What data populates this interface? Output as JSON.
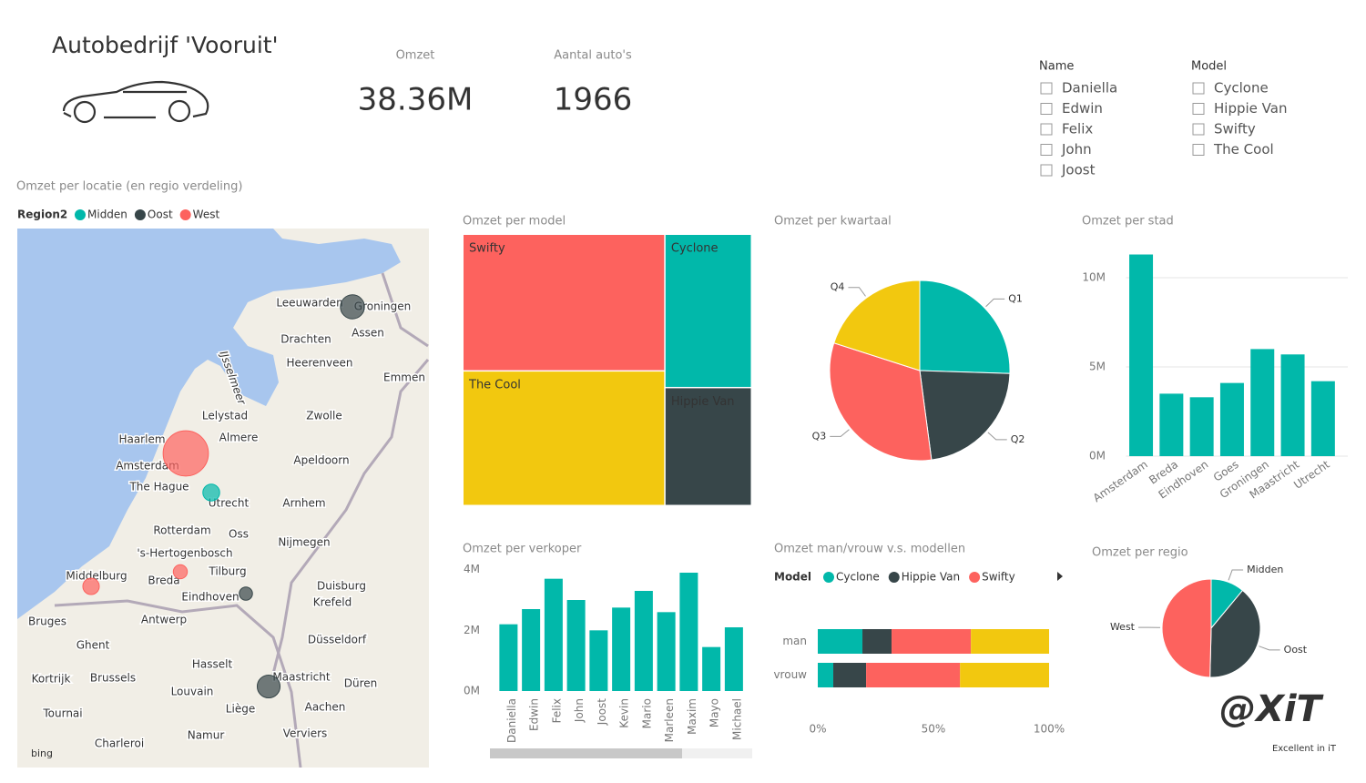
{
  "header": {
    "title": "Autobedrijf 'Vooruit'"
  },
  "cards": [
    {
      "label": "Omzet",
      "value": "38.36M"
    },
    {
      "label": "Aantal auto's",
      "value": "1966"
    }
  ],
  "slicers": [
    {
      "title": "Name",
      "items": [
        "Daniella",
        "Edwin",
        "Felix",
        "John",
        "Joost"
      ]
    },
    {
      "title": "Model",
      "items": [
        "Cyclone",
        "Hippie Van",
        "Swifty",
        "The Cool"
      ]
    }
  ],
  "chart_data": [
    {
      "type": "map",
      "title": "Omzet per locatie (en regio verdeling)",
      "legend_title": "Region2",
      "series": [
        {
          "name": "Midden",
          "color": "#01b8aa",
          "values": [
            4.2
          ]
        },
        {
          "name": "Oost",
          "color": "#374649",
          "values": [
            6.0,
            3.3,
            5.7
          ]
        },
        {
          "name": "West",
          "color": "#fd625e",
          "values": [
            11.3,
            3.5,
            4.1
          ]
        }
      ],
      "places": [
        "Leeuwarden",
        "Groningen",
        "Assen",
        "Drachten",
        "Heerenveen",
        "Emmen",
        "Lelystad",
        "Zwolle",
        "Haarlem",
        "Almere",
        "Amsterdam",
        "Apeldoorn",
        "The Hague",
        "Utrecht",
        "Arnhem",
        "Rotterdam",
        "Oss",
        "Nijmegen",
        "'s-Hertogenbosch",
        "Tilburg",
        "Middelburg",
        "Breda",
        "Eindhoven",
        "Duisburg",
        "Krefeld",
        "Antwerp",
        "Bruges",
        "Ghent",
        "Düsseldorf",
        "Hasselt",
        "Maastricht",
        "Kortrijk",
        "Brussels",
        "Louvain",
        "Düren",
        "Tournai",
        "Liège",
        "Aachen",
        "Namur",
        "Charleroi",
        "Verviers",
        "IJsselmeer"
      ],
      "attribution": "bing"
    },
    {
      "type": "treemap",
      "title": "Omzet per model",
      "categories": [
        "Swifty",
        "The Cool",
        "Cyclone",
        "Hippie Van"
      ],
      "values": [
        13.5,
        13.3,
        6.5,
        5.0
      ],
      "colors": [
        "#fd625e",
        "#f2c80f",
        "#01b8aa",
        "#374649"
      ]
    },
    {
      "type": "pie",
      "title": "Omzet per kwartaal",
      "categories": [
        "Q1",
        "Q2",
        "Q3",
        "Q4"
      ],
      "values": [
        9.8,
        8.6,
        12.3,
        7.7
      ],
      "colors": [
        "#01b8aa",
        "#374649",
        "#fd625e",
        "#f2c80f"
      ]
    },
    {
      "type": "bar",
      "title": "Omzet per stad",
      "categories": [
        "Amsterdam",
        "Breda",
        "Eindhoven",
        "Goes",
        "Groningen",
        "Maastricht",
        "Utrecht"
      ],
      "values": [
        11.3,
        3.5,
        3.3,
        4.1,
        6.0,
        5.7,
        4.2
      ],
      "color": "#01b8aa",
      "ylim": [
        0,
        11.5
      ],
      "yticks": [
        {
          "value": 0,
          "label": "0M"
        },
        {
          "value": 5,
          "label": "5M"
        },
        {
          "value": 10,
          "label": "10M"
        }
      ],
      "grid": true
    },
    {
      "type": "bar",
      "title": "Omzet per verkoper",
      "categories": [
        "Daniella",
        "Edwin",
        "Felix",
        "John",
        "Joost",
        "Kevin",
        "Mario",
        "Marleen",
        "Maxim",
        "Mayo",
        "Michael"
      ],
      "values": [
        2.2,
        2.7,
        3.7,
        3.0,
        2.0,
        2.75,
        3.3,
        2.6,
        3.9,
        1.45,
        2.1
      ],
      "color": "#01b8aa",
      "ylim": [
        0,
        4.2
      ],
      "yticks": [
        {
          "value": 0,
          "label": "0M"
        },
        {
          "value": 2,
          "label": "2M"
        },
        {
          "value": 4,
          "label": "4M"
        }
      ],
      "grid": false
    },
    {
      "type": "stacked-bar-100",
      "title": "Omzet man/vrouw v.s. modellen",
      "legend_title": "Model",
      "categories": [
        "man",
        "vrouw"
      ],
      "series": [
        {
          "name": "Cyclone",
          "color": "#01b8aa",
          "values": [
            19.3,
            6.7
          ]
        },
        {
          "name": "Hippie Van",
          "color": "#374649",
          "values": [
            12.6,
            14.2
          ]
        },
        {
          "name": "Swifty",
          "color": "#fd625e",
          "values": [
            34.3,
            40.6
          ]
        },
        {
          "color": "#f2c80f",
          "values": [
            33.8,
            38.5
          ]
        }
      ],
      "xlim": [
        0,
        100
      ],
      "xticks": [
        {
          "value": 0,
          "label": "0%"
        },
        {
          "value": 50,
          "label": "50%"
        },
        {
          "value": 100,
          "label": "100%"
        }
      ]
    },
    {
      "type": "pie",
      "title": "Omzet per regio",
      "categories": [
        "Midden",
        "Oost",
        "West"
      ],
      "values": [
        4.2,
        15.0,
        18.9
      ],
      "colors": [
        "#01b8aa",
        "#374649",
        "#fd625e"
      ]
    }
  ],
  "logo": {
    "mark": "@XiT",
    "tagline": "Excellent in iT"
  }
}
